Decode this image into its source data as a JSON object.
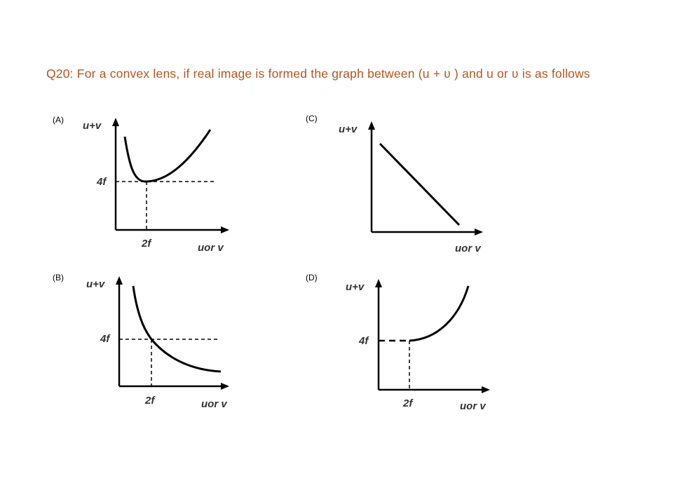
{
  "question": {
    "number": "Q20",
    "text": "Q20: For a convex lens, if real image is formed the graph between (u + ʋ ) and u or ʋ is as follows"
  },
  "options": [
    {
      "label": "(A)",
      "y_axis": "u+v",
      "x_axis": "uor v",
      "y_mark": "4f",
      "x_mark": "2f"
    },
    {
      "label": "(B)",
      "y_axis": "u+v",
      "x_axis": "uor v",
      "y_mark": "4f",
      "x_mark": "2f"
    },
    {
      "label": "(C)",
      "y_axis": "u+v",
      "x_axis": "uor v"
    },
    {
      "label": "(D)",
      "y_axis": "u+v",
      "x_axis": "uor v",
      "y_mark": "4f",
      "x_mark": "2f"
    }
  ]
}
